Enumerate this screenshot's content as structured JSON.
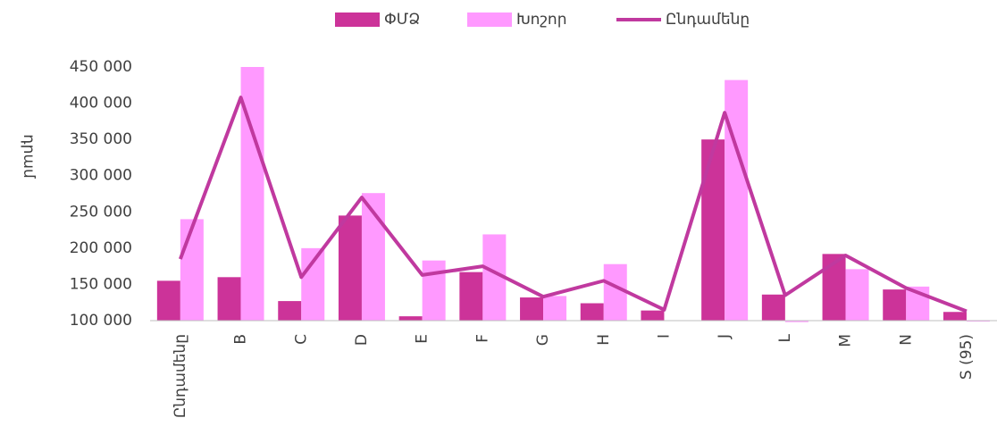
{
  "chart_data": {
    "type": "bar",
    "y_label": "դրամ",
    "categories": [
      "Ընդամենը",
      "B",
      "C",
      "D",
      "E",
      "F",
      "G",
      "H",
      "I",
      "J",
      "L",
      "M",
      "N",
      "S (95)"
    ],
    "series": [
      {
        "name": "ՓՄՁ",
        "type": "bar",
        "color": "#cc3399",
        "values": [
          155000,
          160000,
          127000,
          245000,
          106000,
          167000,
          132000,
          124000,
          114000,
          350000,
          136000,
          192000,
          143000,
          112000
        ]
      },
      {
        "name": "Խոշոր",
        "type": "bar",
        "color": "#ff99ff",
        "values": [
          240000,
          450000,
          200000,
          276000,
          183000,
          219000,
          134000,
          178000,
          null,
          432000,
          98000,
          171000,
          147000,
          99000
        ]
      },
      {
        "name": "Ընդամենը",
        "type": "line",
        "color": "#c0399f",
        "values": [
          185000,
          408000,
          160000,
          270000,
          163000,
          175000,
          133000,
          155000,
          115000,
          387000,
          135000,
          190000,
          145000,
          113000
        ]
      }
    ],
    "ylim": [
      100000,
      450000
    ],
    "yticks": [
      {
        "value": 100000,
        "label": "100 000"
      },
      {
        "value": 150000,
        "label": "150 000"
      },
      {
        "value": 200000,
        "label": "200 000"
      },
      {
        "value": 250000,
        "label": "250 000"
      },
      {
        "value": 300000,
        "label": "300 000"
      },
      {
        "value": 350000,
        "label": "350 000"
      },
      {
        "value": 400000,
        "label": "400 000"
      },
      {
        "value": 450000,
        "label": "450 000"
      }
    ],
    "legend": "top"
  }
}
